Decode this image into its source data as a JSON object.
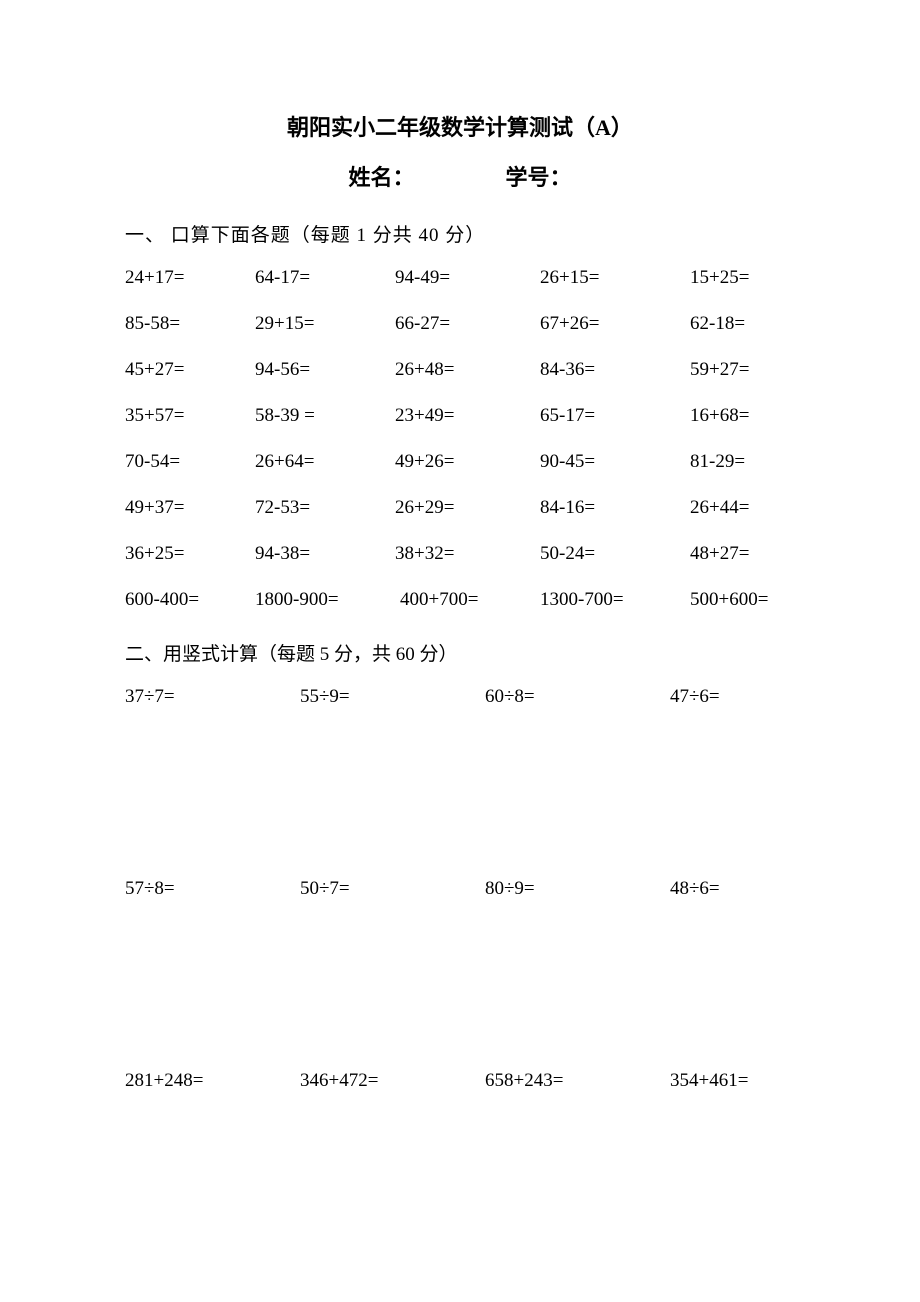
{
  "document": {
    "title": "朝阳实小二年级数学计算测试（A）",
    "name_label": "姓名：",
    "id_label": "学号：",
    "background_color": "#ffffff",
    "text_color": "#000000",
    "title_fontsize": 22,
    "body_fontsize": 19
  },
  "section1": {
    "heading": "一、   口算下面各题（每题 1 分共 40 分）",
    "rows": [
      [
        "24+17=",
        "64-17=",
        "94-49=",
        "26+15=",
        "15+25="
      ],
      [
        "85-58=",
        "29+15=",
        "66-27=",
        "67+26=",
        "62-18="
      ],
      [
        "45+27=",
        "94-56=",
        "26+48=",
        "84-36=",
        "59+27="
      ],
      [
        "35+57=",
        "58-39 =",
        "23+49=",
        "65-17=",
        "16+68="
      ],
      [
        "70-54=",
        "26+64=",
        "49+26=",
        "90-45=",
        "81-29="
      ],
      [
        "49+37=",
        "72-53=",
        "26+29=",
        "84-16=",
        "26+44="
      ],
      [
        "36+25=",
        "94-38=",
        "38+32=",
        "50-24=",
        "48+27="
      ]
    ],
    "last_row": [
      "600-400=",
      "1800-900=",
      "400+700=",
      "1300-700=",
      "500+600="
    ]
  },
  "section2": {
    "heading": "二、用竖式计算（每题 5 分，共 60 分）",
    "group1": [
      "37÷7=",
      "55÷9=",
      "60÷8=",
      "47÷6="
    ],
    "group2": [
      "57÷8=",
      "50÷7=",
      "80÷9=",
      "48÷6="
    ],
    "group3": [
      "281+248=",
      "346+472=",
      "658+243=",
      "354+461="
    ]
  }
}
